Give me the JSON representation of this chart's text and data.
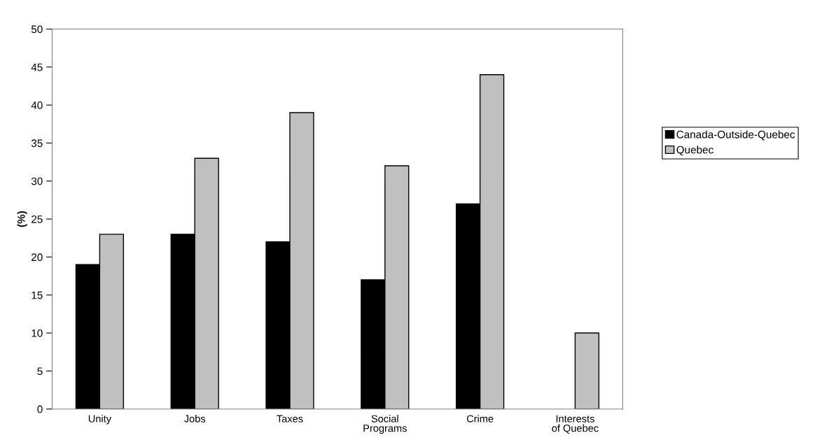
{
  "chart_data": {
    "type": "bar",
    "ylabel": "(%)",
    "categories": [
      "Unity",
      "Jobs",
      "Taxes",
      "Social\nPrograms",
      "Crime",
      "Interests\nof Quebec"
    ],
    "series": [
      {
        "name": "Canada-Outside-Quebec",
        "color": "#000000",
        "values": [
          19,
          23,
          22,
          17,
          27,
          null
        ]
      },
      {
        "name": "Quebec",
        "color": "#c0c0c0",
        "values": [
          23,
          33,
          39,
          32,
          44,
          10
        ]
      }
    ],
    "ylim": [
      0,
      50
    ],
    "yticks": [
      0,
      5,
      10,
      15,
      20,
      25,
      30,
      35,
      40,
      45,
      50
    ],
    "grid": false,
    "legend": "right"
  }
}
